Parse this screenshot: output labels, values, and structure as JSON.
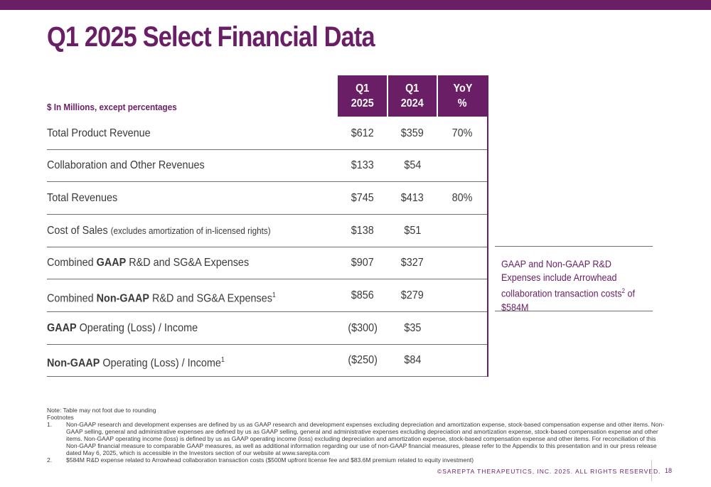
{
  "title": "Q1 2025 Select Financial Data",
  "units_label": "$ In Millions, except percentages",
  "columns": [
    {
      "line1": "Q1",
      "line2": "2025"
    },
    {
      "line1": "Q1",
      "line2": "2024"
    },
    {
      "line1": "YoY",
      "line2": "%"
    }
  ],
  "rows": [
    {
      "label": "Total Product Revenue",
      "q1_2025": "$612",
      "q1_2024": "$359",
      "yoy": "70%"
    },
    {
      "label": "Collaboration and Other Revenues",
      "q1_2025": "$133",
      "q1_2024": "$54",
      "yoy": ""
    },
    {
      "label": "Total Revenues",
      "q1_2025": "$745",
      "q1_2024": "$413",
      "yoy": "80%"
    },
    {
      "label": "Cost of Sales",
      "label_note": "(excludes amortization of in-licensed rights)",
      "q1_2025": "$138",
      "q1_2024": "$51",
      "yoy": ""
    },
    {
      "label_pre": "Combined ",
      "label_bold": "GAAP",
      "label_post": " R&D and SG&A Expenses",
      "q1_2025": "$907",
      "q1_2024": "$327",
      "yoy": ""
    },
    {
      "label_pre": "Combined ",
      "label_bold": "Non-GAAP",
      "label_post": " R&D and SG&A Expenses",
      "label_sup": "1",
      "q1_2025": "$856",
      "q1_2024": "$279",
      "yoy": ""
    },
    {
      "label_bold": "GAAP",
      "label_post": " Operating (Loss) / Income",
      "q1_2025": "($300)",
      "q1_2024": "$35",
      "yoy": ""
    },
    {
      "label_bold": "Non-GAAP",
      "label_post": " Operating (Loss) / Income",
      "label_sup": "1",
      "q1_2025": "($250)",
      "q1_2024": "$84",
      "yoy": ""
    }
  ],
  "callout": {
    "text_pre": "GAAP and Non-GAAP R&D Expenses include Arrowhead collaboration transaction costs",
    "sup": "2",
    "text_post": " of $584M"
  },
  "notes": {
    "note": "Note: Table may not foot due to rounding",
    "footnotes_label": "Footnotes",
    "footnotes": [
      {
        "num": "1.",
        "text": "Non-GAAP research and development expenses are defined by us as GAAP research and development expenses excluding depreciation and amortization expense, stock-based compensation expense and other items. Non-GAAP selling, general and administrative expenses are defined by us as GAAP selling, general and administrative expenses excluding depreciation and amortization expense, stock-based compensation expense and other items. Non-GAAP operating income (loss) is defined by us as GAAP operating income (loss) excluding depreciation and amortization expense, stock-based compensation expense and other items. For reconciliation of this Non-GAAP financial measure to comparable GAAP measures, as well as additional information regarding our use of non-GAAP financial measures, please refer to the Appendix to this presentation and in our press release dated May 6, 2025, which is accessible in the Investors section of our website at www.sarepta.com"
      },
      {
        "num": "2.",
        "text": "$584M R&D expense related to Arrowhead collaboration transaction costs ($500M upfront license fee and $83.6M premium related to equity investment)"
      }
    ]
  },
  "footer": {
    "copyright": "©SAREPTA THERAPEUTICS, INC. 2025.  ALL RIGHTS RESERVED.",
    "page": "18"
  },
  "colors": {
    "brand": "#6a1e66",
    "text": "#3a3a3a"
  }
}
